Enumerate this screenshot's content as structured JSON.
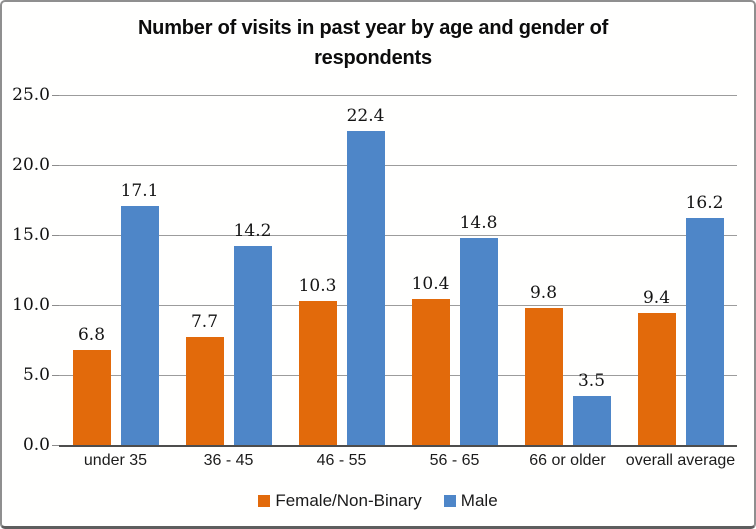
{
  "window": {
    "background": "#fffffe",
    "border_color": "#8f8f8f"
  },
  "chart_data": {
    "type": "bar",
    "title": "Number of visits in past year by age and gender of respondents",
    "title_lines": [
      "Number of visits in past year by age and gender of",
      "respondents"
    ],
    "categories": [
      "under 35",
      "36 - 45",
      "46 - 55",
      "56 - 65",
      "66 or older",
      "overall average"
    ],
    "series": [
      {
        "name": "Female/Non-Binary",
        "color": "#E26A0B",
        "values": [
          6.8,
          7.7,
          10.3,
          10.4,
          9.8,
          9.4
        ]
      },
      {
        "name": "Male",
        "color": "#4E86C8",
        "values": [
          17.1,
          14.2,
          22.4,
          14.8,
          3.5,
          16.2
        ]
      }
    ],
    "xlabel": "",
    "ylabel": "",
    "ylim": [
      0,
      25
    ],
    "ytick_step": 5,
    "ytick_labels": [
      "0.0",
      "5.0",
      "10.0",
      "15.0",
      "20.0",
      "25.0"
    ],
    "grid": true,
    "gridline_color": "#9c9c9c",
    "axis_color": "#4d4d4d",
    "data_label_color": "#141414",
    "legend_position": "bottom"
  }
}
